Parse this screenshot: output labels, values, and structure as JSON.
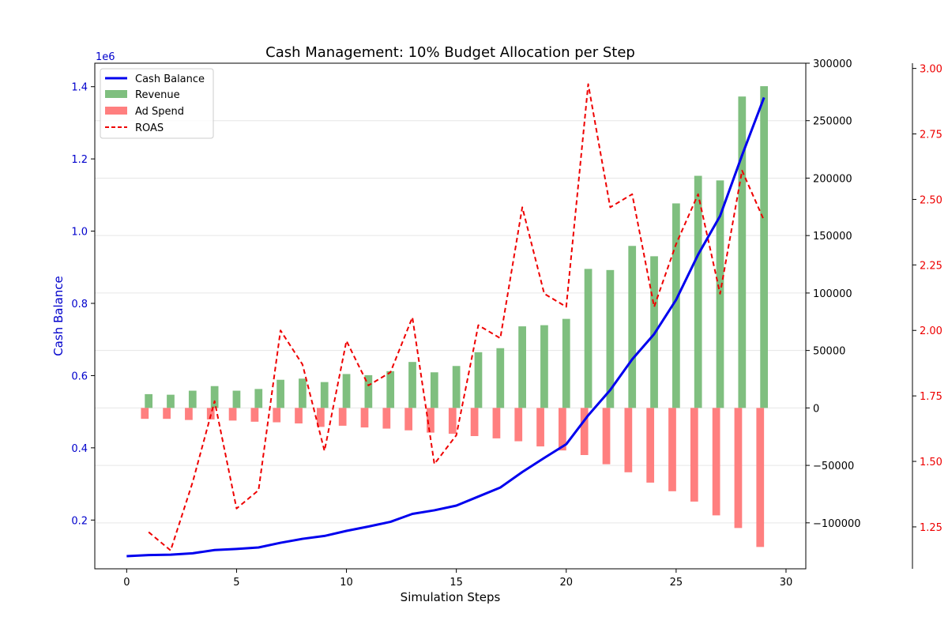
{
  "chart_data": {
    "type": "bar",
    "title": "Cash Management: 10% Budget Allocation per Step",
    "xlabel": "Simulation Steps",
    "ylabel": "Cash Balance",
    "y_offset_text": "1e6",
    "xlim": [
      -1.45,
      30.9
    ],
    "ylim": [
      0.065,
      1.465
    ],
    "y2lim": [
      -140000,
      300000
    ],
    "y3lim": [
      1.09,
      3.02
    ],
    "x_ticks": [
      0,
      5,
      10,
      15,
      20,
      25,
      30
    ],
    "x_tick_labels": [
      "0",
      "5",
      "10",
      "15",
      "20",
      "25",
      "30"
    ],
    "y_ticks": [
      0.2,
      0.4,
      0.6,
      0.8,
      1.0,
      1.2,
      1.4
    ],
    "y_tick_labels": [
      "0.2",
      "0.4",
      "0.6",
      "0.8",
      "1.0",
      "1.2",
      "1.4"
    ],
    "y2_ticks": [
      -100000,
      -50000,
      0,
      50000,
      100000,
      150000,
      200000,
      250000,
      300000
    ],
    "y2_tick_labels": [
      "−100000",
      "−50000",
      "0",
      "50000",
      "100000",
      "150000",
      "200000",
      "250000",
      "300000"
    ],
    "y3_ticks": [
      1.25,
      1.5,
      1.75,
      2.0,
      2.25,
      2.5,
      2.75,
      3.0
    ],
    "y3_tick_labels": [
      "1.25",
      "1.50",
      "1.75",
      "2.00",
      "2.25",
      "2.50",
      "2.75",
      "3.00"
    ],
    "grid": true,
    "legend_position": "top-left",
    "colors": {
      "cash": "#0000ee",
      "revenue": "#7fbf7f",
      "adspend": "#ff7f7f",
      "roas": "#ee0000",
      "axis_left_text": "#0000cc",
      "axis_roas_text": "#ee0000"
    },
    "series": [
      {
        "name": "Cash Balance",
        "kind": "line",
        "axis": "left",
        "x": [
          0,
          1,
          2,
          3,
          4,
          5,
          6,
          7,
          8,
          9,
          10,
          11,
          12,
          13,
          14,
          15,
          16,
          17,
          18,
          19,
          20,
          21,
          22,
          23,
          24,
          25,
          26,
          27,
          28,
          29
        ],
        "values": [
          0.1,
          0.103,
          0.104,
          0.108,
          0.117,
          0.12,
          0.124,
          0.137,
          0.148,
          0.156,
          0.17,
          0.182,
          0.195,
          0.217,
          0.227,
          0.24,
          0.265,
          0.29,
          0.333,
          0.372,
          0.41,
          0.49,
          0.56,
          0.645,
          0.715,
          0.81,
          0.935,
          1.042,
          1.21,
          1.37
        ]
      },
      {
        "name": "Revenue",
        "kind": "bar",
        "axis": "right",
        "x": [
          1,
          2,
          3,
          4,
          5,
          6,
          7,
          8,
          9,
          10,
          11,
          12,
          13,
          14,
          15,
          16,
          17,
          18,
          19,
          20,
          21,
          22,
          23,
          24,
          25,
          26,
          27,
          28,
          29
        ],
        "values": [
          12000,
          11500,
          15000,
          19000,
          15000,
          16500,
          24500,
          25500,
          22500,
          29500,
          28500,
          32000,
          40000,
          31000,
          36500,
          48500,
          52000,
          71000,
          72000,
          77500,
          121000,
          120000,
          141000,
          132000,
          178000,
          202000,
          198000,
          271000,
          280000
        ]
      },
      {
        "name": "Ad Spend",
        "kind": "bar",
        "axis": "right",
        "x": [
          1,
          2,
          3,
          4,
          5,
          6,
          7,
          8,
          9,
          10,
          11,
          12,
          13,
          14,
          15,
          16,
          17,
          18,
          19,
          20,
          21,
          22,
          23,
          24,
          25,
          26,
          27,
          28,
          29
        ],
        "values": [
          -9500,
          -9500,
          -10500,
          -10000,
          -11000,
          -12000,
          -12500,
          -13500,
          -16500,
          -15500,
          -17000,
          -18000,
          -19500,
          -21500,
          -22500,
          -24500,
          -26500,
          -29000,
          -33500,
          -37000,
          -41000,
          -49000,
          -56000,
          -65000,
          -72500,
          -81500,
          -93500,
          -104500,
          -121000
        ]
      },
      {
        "name": "ROAS",
        "kind": "dashed-line",
        "axis": "roas",
        "x": [
          1,
          2,
          3,
          4,
          5,
          6,
          7,
          8,
          9,
          10,
          11,
          12,
          13,
          14,
          15,
          16,
          17,
          18,
          19,
          20,
          21,
          22,
          23,
          24,
          25,
          26,
          27,
          28,
          29
        ],
        "values": [
          1.23,
          1.16,
          1.42,
          1.73,
          1.32,
          1.39,
          2.0,
          1.87,
          1.54,
          1.96,
          1.79,
          1.84,
          2.05,
          1.49,
          1.6,
          2.02,
          1.97,
          2.47,
          2.14,
          2.09,
          2.94,
          2.47,
          2.52,
          2.09,
          2.33,
          2.52,
          2.14,
          2.61,
          2.42
        ]
      }
    ]
  }
}
